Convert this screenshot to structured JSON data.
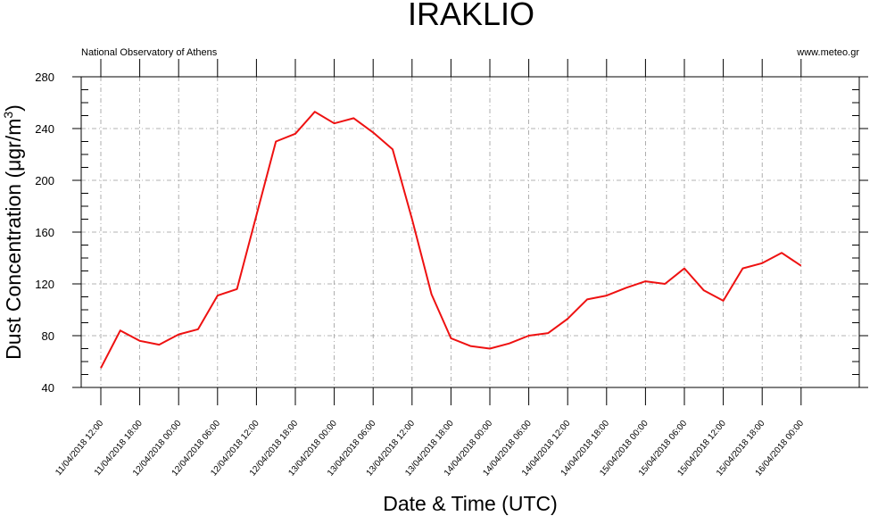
{
  "title": "IRAKLIO",
  "left_note": "National Observatory of Athens",
  "right_note": "www.meteo.gr",
  "colors": {
    "series": "#ee1111",
    "grid": "#9a9a9a",
    "axis": "#000000"
  },
  "chart_data": {
    "type": "line",
    "title": "IRAKLIO",
    "xlabel": "Date & Time (UTC)",
    "ylabel_main": "Dust Concentration (μgr/m",
    "ylabel_sup": "3",
    "ylabel_close": ")",
    "ylim": [
      40,
      280
    ],
    "yticks": [
      40,
      80,
      120,
      160,
      200,
      240,
      280
    ],
    "y_minor_step": 10,
    "grid": true,
    "x_tick_labels": [
      "11/04/2018 12:00",
      "11/04/2018 18:00",
      "12/04/2018 00:00",
      "12/04/2018 06:00",
      "12/04/2018 12:00",
      "12/04/2018 18:00",
      "13/04/2018 00:00",
      "13/04/2018 06:00",
      "13/04/2018 12:00",
      "13/04/2018 18:00",
      "14/04/2018 00:00",
      "14/04/2018 06:00",
      "14/04/2018 12:00",
      "14/04/2018 18:00",
      "15/04/2018 00:00",
      "15/04/2018 06:00",
      "15/04/2018 12:00",
      "15/04/2018 18:00",
      "16/04/2018 00:00"
    ],
    "x": [
      "11/04/2018 12:00",
      "11/04/2018 15:00",
      "11/04/2018 18:00",
      "11/04/2018 21:00",
      "12/04/2018 00:00",
      "12/04/2018 03:00",
      "12/04/2018 06:00",
      "12/04/2018 09:00",
      "12/04/2018 12:00",
      "12/04/2018 15:00",
      "12/04/2018 18:00",
      "12/04/2018 21:00",
      "13/04/2018 00:00",
      "13/04/2018 03:00",
      "13/04/2018 06:00",
      "13/04/2018 09:00",
      "13/04/2018 12:00",
      "13/04/2018 15:00",
      "13/04/2018 18:00",
      "13/04/2018 21:00",
      "14/04/2018 00:00",
      "14/04/2018 03:00",
      "14/04/2018 06:00",
      "14/04/2018 09:00",
      "14/04/2018 12:00",
      "14/04/2018 15:00",
      "14/04/2018 18:00",
      "14/04/2018 21:00",
      "15/04/2018 00:00",
      "15/04/2018 03:00",
      "15/04/2018 06:00",
      "15/04/2018 09:00",
      "15/04/2018 12:00",
      "15/04/2018 15:00",
      "15/04/2018 18:00",
      "15/04/2018 21:00",
      "16/04/2018 00:00"
    ],
    "series": [
      {
        "color": "#ee1111",
        "values": [
          55,
          84,
          76,
          73,
          81,
          85,
          111,
          116,
          173,
          230,
          236,
          253,
          244,
          248,
          237,
          224,
          170,
          112,
          78,
          72,
          70,
          74,
          80,
          82,
          93,
          108,
          111,
          117,
          122,
          120,
          132,
          115,
          107,
          132,
          136,
          144,
          134
        ]
      }
    ]
  }
}
